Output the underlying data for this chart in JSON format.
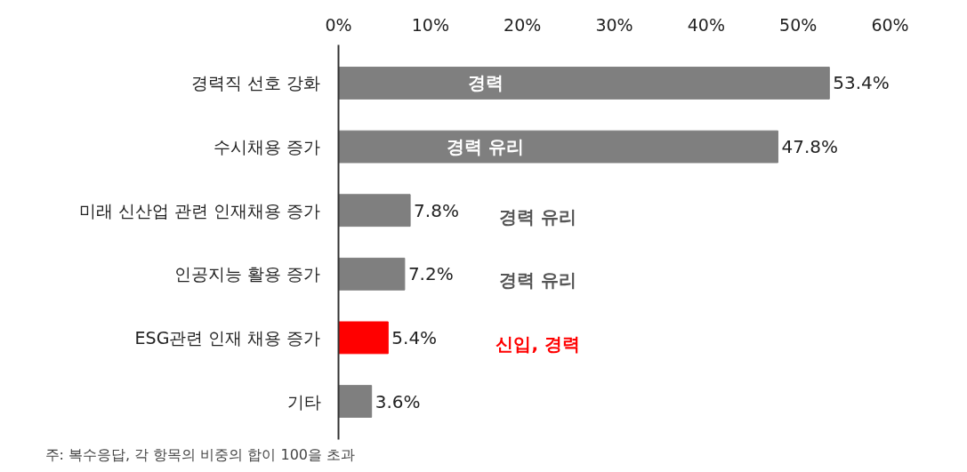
{
  "chart_data": {
    "type": "bar",
    "orientation": "horizontal",
    "categories": [
      "경력직 선호 강화",
      "수시채용 증가",
      "미래 신산업 관련 인재채용 증가",
      "인공지능 활용 증가",
      "ESG관련 인재 채용 증가",
      "기타"
    ],
    "values": [
      53.4,
      47.8,
      7.8,
      7.2,
      5.4,
      3.6
    ],
    "value_labels": [
      "53.4%",
      "47.8%",
      "7.8%",
      "7.2%",
      "5.4%",
      "3.6%"
    ],
    "colors": [
      "#7f7f7f",
      "#7f7f7f",
      "#7f7f7f",
      "#7f7f7f",
      "#ff0000",
      "#7f7f7f"
    ],
    "xlim": [
      0,
      60
    ],
    "xticks": [
      {
        "value": 0,
        "label": "0%"
      },
      {
        "value": 10,
        "label": "10%"
      },
      {
        "value": 20,
        "label": "20%"
      },
      {
        "value": 30,
        "label": "30%"
      },
      {
        "value": 40,
        "label": "40%"
      },
      {
        "value": 50,
        "label": "50%"
      },
      {
        "value": 60,
        "label": "60%"
      }
    ],
    "grid": false,
    "annotations": [
      "경력",
      "경력 유리",
      "경력 유리",
      "경력 유리",
      "신입, 경력",
      "주: 복수응답, 각 항목의 비중의 합이 100을 초과"
    ]
  }
}
